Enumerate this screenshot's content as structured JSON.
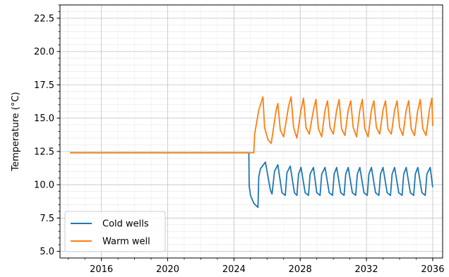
{
  "chart_data": {
    "type": "line",
    "title": "",
    "xlabel": "",
    "ylabel": "Temperature (°C)",
    "xlim": [
      2013.5,
      2036.6
    ],
    "ylim": [
      4.5,
      23.5
    ],
    "x_ticks": [
      2016,
      2020,
      2024,
      2028,
      2032,
      2036
    ],
    "x_tick_labels": [
      "2016",
      "2020",
      "2024",
      "2028",
      "2032",
      "2036"
    ],
    "y_ticks": [
      5.0,
      7.5,
      10.0,
      12.5,
      15.0,
      17.5,
      20.0,
      22.5
    ],
    "y_tick_labels": [
      "5.0",
      "7.5",
      "10.0",
      "12.5",
      "15.0",
      "17.5",
      "20.0",
      "22.5"
    ],
    "grid": true,
    "legend_position": "lower-left",
    "series": [
      {
        "name": "Cold wells",
        "color": "#1f77b4",
        "x": [
          2014.1,
          2024.9,
          2024.92,
          2025.0,
          2025.2,
          2025.45,
          2025.5,
          2025.6,
          2025.9,
          2026.2,
          2026.3,
          2026.45,
          2026.65,
          2026.9,
          2027.1,
          2027.2,
          2027.4,
          2027.65,
          2027.8,
          2027.9,
          2028.05,
          2028.3,
          2028.5,
          2028.6,
          2028.8,
          2029.0,
          2029.2,
          2029.3,
          2029.5,
          2029.75,
          2029.95,
          2030.05,
          2030.2,
          2030.45,
          2030.65,
          2030.75,
          2030.9,
          2031.15,
          2031.35,
          2031.45,
          2031.6,
          2031.85,
          2032.05,
          2032.15,
          2032.3,
          2032.55,
          2032.75,
          2032.85,
          2033.0,
          2033.25,
          2033.45,
          2033.55,
          2033.7,
          2033.95,
          2034.15,
          2034.25,
          2034.4,
          2034.65,
          2034.85,
          2034.95,
          2035.1,
          2035.35,
          2035.55,
          2035.65,
          2035.85,
          2036.0
        ],
        "y": [
          12.4,
          12.4,
          9.9,
          9.2,
          8.6,
          8.3,
          10.6,
          11.2,
          11.7,
          9.6,
          9.3,
          11.0,
          11.5,
          9.4,
          9.2,
          10.9,
          11.4,
          9.4,
          9.2,
          10.8,
          11.3,
          9.4,
          9.2,
          10.8,
          11.3,
          9.4,
          9.2,
          10.8,
          11.3,
          9.4,
          9.2,
          10.8,
          11.3,
          9.4,
          9.2,
          10.8,
          11.3,
          9.4,
          9.2,
          10.8,
          11.3,
          9.4,
          9.2,
          10.8,
          11.3,
          9.4,
          9.2,
          10.8,
          11.3,
          9.4,
          9.2,
          10.8,
          11.3,
          9.4,
          9.2,
          10.8,
          11.3,
          9.4,
          9.2,
          10.8,
          11.3,
          9.4,
          9.2,
          10.8,
          11.3,
          9.8
        ]
      },
      {
        "name": "Warm well",
        "color": "#ff7f0e",
        "x": [
          2014.1,
          2025.2,
          2025.25,
          2025.5,
          2025.75,
          2025.85,
          2026.05,
          2026.25,
          2026.55,
          2026.65,
          2026.8,
          2027.0,
          2027.3,
          2027.45,
          2027.6,
          2027.8,
          2028.05,
          2028.2,
          2028.35,
          2028.55,
          2028.8,
          2028.95,
          2029.1,
          2029.3,
          2029.5,
          2029.65,
          2029.8,
          2030.0,
          2030.2,
          2030.35,
          2030.5,
          2030.7,
          2030.9,
          2031.05,
          2031.2,
          2031.4,
          2031.6,
          2031.75,
          2031.9,
          2032.1,
          2032.3,
          2032.45,
          2032.6,
          2032.8,
          2033.0,
          2033.15,
          2033.3,
          2033.5,
          2033.7,
          2033.85,
          2034.0,
          2034.2,
          2034.4,
          2034.55,
          2034.7,
          2034.9,
          2035.1,
          2035.25,
          2035.4,
          2035.6,
          2035.8,
          2035.95,
          2036.0
        ],
        "y": [
          12.4,
          12.4,
          13.8,
          15.6,
          16.6,
          14.3,
          13.4,
          13.1,
          15.6,
          16.1,
          14.1,
          13.6,
          15.9,
          16.6,
          14.3,
          13.5,
          15.6,
          16.5,
          14.3,
          13.8,
          15.6,
          16.4,
          14.2,
          13.6,
          15.6,
          16.3,
          14.3,
          13.8,
          15.6,
          16.4,
          14.2,
          13.7,
          15.6,
          16.3,
          14.3,
          13.6,
          15.6,
          16.4,
          14.2,
          13.6,
          15.6,
          16.3,
          14.3,
          13.8,
          15.6,
          16.3,
          14.2,
          13.8,
          15.6,
          16.3,
          14.3,
          13.7,
          15.6,
          16.3,
          14.2,
          13.7,
          15.6,
          16.4,
          14.2,
          13.7,
          15.6,
          16.5,
          14.4
        ]
      }
    ]
  }
}
